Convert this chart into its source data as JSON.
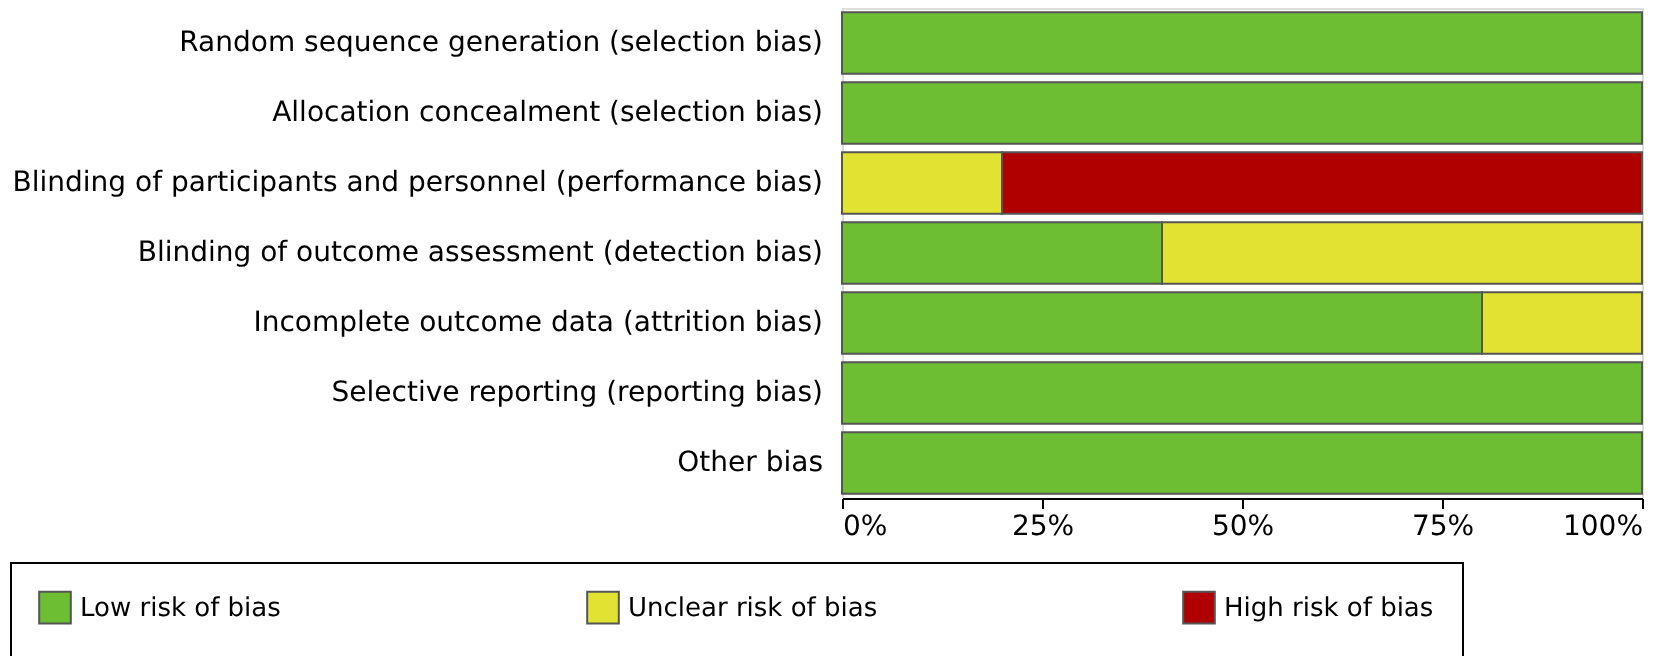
{
  "chart_data": {
    "type": "bar",
    "orientation": "horizontal",
    "stacked": true,
    "categories": [
      "Random sequence generation (selection bias)",
      "Allocation concealment (selection bias)",
      "Blinding of participants and personnel (performance bias)",
      "Blinding of outcome assessment (detection bias)",
      "Incomplete outcome data (attrition bias)",
      "Selective reporting (reporting bias)",
      "Other bias"
    ],
    "series": [
      {
        "name": "Low risk of bias",
        "color": "#6dbe33",
        "values": [
          100,
          100,
          0,
          40,
          80,
          100,
          100
        ]
      },
      {
        "name": "Unclear risk of bias",
        "color": "#e2e232",
        "values": [
          0,
          0,
          20,
          60,
          20,
          0,
          0
        ]
      },
      {
        "name": "High risk of bias",
        "color": "#b00000",
        "values": [
          0,
          0,
          80,
          0,
          0,
          0,
          0
        ]
      }
    ],
    "xlim": [
      0,
      100
    ],
    "xticks": [
      {
        "value": 0,
        "label": "0%"
      },
      {
        "value": 25,
        "label": "25%"
      },
      {
        "value": 50,
        "label": "50%"
      },
      {
        "value": 75,
        "label": "75%"
      },
      {
        "value": 100,
        "label": "100%"
      }
    ],
    "grid": false,
    "legend": "bottom"
  }
}
